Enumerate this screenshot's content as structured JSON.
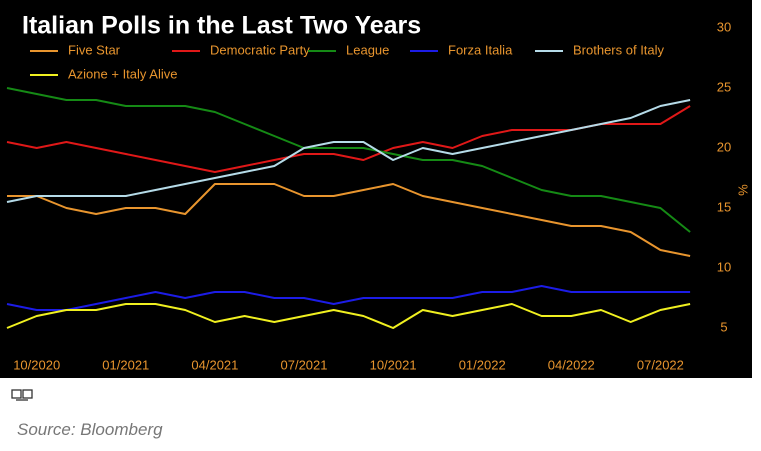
{
  "chart_data": {
    "type": "line",
    "title": "Italian Polls in the Last Two Years",
    "categories": [
      null,
      "10/2020",
      null,
      null,
      "01/2021",
      null,
      null,
      "04/2021",
      null,
      null,
      "07/2021",
      null,
      null,
      "10/2021",
      null,
      null,
      "01/2022",
      null,
      null,
      "04/2022",
      null,
      null,
      "07/2022",
      null
    ],
    "series": [
      {
        "name": "Five Star",
        "color": "#e8952e",
        "values": [
          16,
          16,
          15,
          14.5,
          15,
          15,
          14.5,
          17,
          17,
          17,
          16,
          16,
          16.5,
          17,
          16,
          15.5,
          15,
          14.5,
          14,
          13.5,
          13.5,
          13,
          11.5,
          11
        ]
      },
      {
        "name": "Democratic Party",
        "color": "#e01818",
        "values": [
          20.5,
          20,
          20.5,
          20,
          19.5,
          19,
          18.5,
          18,
          18.5,
          19,
          19.5,
          19.5,
          19,
          20,
          20.5,
          20,
          21,
          21.5,
          21.5,
          21.5,
          22,
          22,
          22,
          23.5
        ]
      },
      {
        "name": "League",
        "color": "#158a15",
        "values": [
          25,
          24.5,
          24,
          24,
          23.5,
          23.5,
          23.5,
          23,
          22,
          21,
          20,
          20,
          20,
          19.5,
          19,
          19,
          18.5,
          17.5,
          16.5,
          16,
          16,
          15.5,
          15,
          13
        ]
      },
      {
        "name": "Forza Italia",
        "color": "#1c1ce6",
        "values": [
          7,
          6.5,
          6.5,
          7,
          7.5,
          8,
          7.5,
          8,
          8,
          7.5,
          7.5,
          7,
          7.5,
          7.5,
          7.5,
          7.5,
          8,
          8,
          8.5,
          8,
          8,
          8,
          8,
          8
        ]
      },
      {
        "name": "Brothers of Italy",
        "color": "#b5dbe8",
        "values": [
          15.5,
          16,
          16,
          16,
          16,
          16.5,
          17,
          17.5,
          18,
          18.5,
          20,
          20.5,
          20.5,
          19,
          20,
          19.5,
          20,
          20.5,
          21,
          21.5,
          22,
          22.5,
          23.5,
          24
        ]
      },
      {
        "name": "Azione + Italy Alive",
        "color": "#f0f020",
        "values": [
          5,
          6,
          6.5,
          6.5,
          7,
          7,
          6.5,
          5.5,
          6,
          5.5,
          6,
          6.5,
          6,
          5,
          6.5,
          6,
          6.5,
          7,
          6,
          6,
          6.5,
          5.5,
          6.5,
          7
        ]
      }
    ],
    "ylabel": "%",
    "ylim": [
      3,
      30
    ],
    "yticks": [
      5,
      10,
      15,
      20,
      25,
      30
    ],
    "grid": false,
    "axis_color": "#e8952e"
  },
  "source": "Source: Bloomberg"
}
